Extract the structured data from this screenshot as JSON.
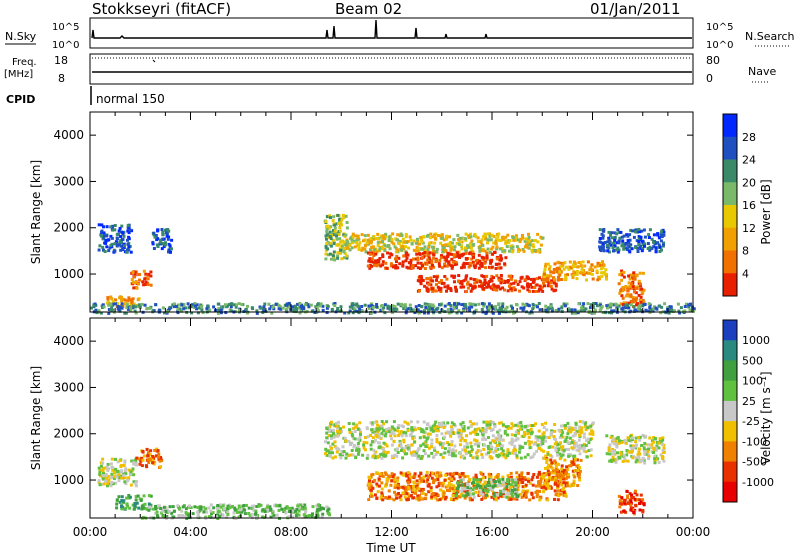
{
  "header": {
    "station": "Stokkseyri (fitACF)",
    "beam": "Beam 02",
    "date": "01/Jan/2011"
  },
  "top_panels": {
    "nsky_label": "N.Sky",
    "nsky_ticks": [
      "10^5",
      "10^0"
    ],
    "nsearch_label": "N.Search",
    "nsearch_ticks": [
      "10^5",
      "10^0"
    ],
    "freq_label": "Freq.",
    "freq_unit": "[MHz]",
    "freq_ticks": [
      "18",
      "8"
    ],
    "nave_label": "Nave",
    "nave_ticks": [
      "80",
      "0"
    ],
    "cpid_label": "CPID",
    "cpid_value": "normal 150"
  },
  "chart_data": [
    {
      "type": "heatmap",
      "panel": "power",
      "ylabel": "Slant Range [km]",
      "xlabel": "",
      "yticks": [
        "1000",
        "2000",
        "3000",
        "4000"
      ],
      "ylim": [
        180,
        4500
      ],
      "xlim": [
        0,
        24
      ],
      "colorbar": {
        "label": "Power [dB]",
        "ticks": [
          "4",
          "8",
          "12",
          "16",
          "20",
          "24",
          "28"
        ],
        "colors": [
          "#0028ff",
          "#2050c0",
          "#3a8a6a",
          "#7ab86a",
          "#e8c800",
          "#f0a000",
          "#f07000",
          "#e82000"
        ]
      },
      "echo_regions": [
        {
          "t0": 0.3,
          "t1": 1.6,
          "r0": 1500,
          "r1": 2100,
          "level": 1
        },
        {
          "t0": 1.6,
          "t1": 2.4,
          "r0": 700,
          "r1": 1100,
          "level": 6
        },
        {
          "t0": 0.6,
          "t1": 1.9,
          "r0": 300,
          "r1": 550,
          "level": 5
        },
        {
          "t0": 2.4,
          "t1": 3.2,
          "r0": 1500,
          "r1": 2000,
          "level": 1
        },
        {
          "t0": 9.3,
          "t1": 10.2,
          "r0": 1300,
          "r1": 2300,
          "level": 3
        },
        {
          "t0": 10.0,
          "t1": 18.0,
          "r0": 1500,
          "r1": 1900,
          "level": 4
        },
        {
          "t0": 11.0,
          "t1": 16.5,
          "r0": 1150,
          "r1": 1500,
          "level": 7
        },
        {
          "t0": 13.0,
          "t1": 18.5,
          "r0": 650,
          "r1": 1000,
          "level": 7
        },
        {
          "t0": 18.0,
          "t1": 20.5,
          "r0": 900,
          "r1": 1300,
          "level": 5
        },
        {
          "t0": 20.2,
          "t1": 22.8,
          "r0": 1500,
          "r1": 2000,
          "level": 1
        },
        {
          "t0": 21.0,
          "t1": 22.0,
          "r0": 300,
          "r1": 1100,
          "level": 6
        },
        {
          "t0": 0.0,
          "t1": 24.0,
          "r0": 180,
          "r1": 400,
          "level": 2
        }
      ]
    },
    {
      "type": "heatmap",
      "panel": "velocity",
      "ylabel": "Slant Range [km]",
      "xlabel": "Time UT",
      "xticks": [
        "00:00",
        "04:00",
        "08:00",
        "12:00",
        "16:00",
        "20:00",
        "00:00"
      ],
      "yticks": [
        "1000",
        "2000",
        "3000",
        "4000"
      ],
      "ylim": [
        180,
        4500
      ],
      "xlim": [
        0,
        24
      ],
      "colorbar": {
        "label": "Velocity [m s⁻¹]",
        "ticks": [
          "1000",
          "500",
          "100",
          "25",
          "-25",
          "-100",
          "-500",
          "-1000"
        ],
        "colors": [
          "#1a40c0",
          "#2a8a80",
          "#40a040",
          "#60c040",
          "#c8c8c8",
          "#f0c000",
          "#f08000",
          "#e83000",
          "#e80000"
        ]
      },
      "echo_regions": [
        {
          "t0": 0.3,
          "t1": 1.8,
          "r0": 900,
          "r1": 1500,
          "level": 4
        },
        {
          "t0": 1.8,
          "t1": 2.8,
          "r0": 1300,
          "r1": 1700,
          "level": 6
        },
        {
          "t0": 1.0,
          "t1": 2.4,
          "r0": 400,
          "r1": 700,
          "level": 2
        },
        {
          "t0": 2.0,
          "t1": 9.5,
          "r0": 200,
          "r1": 500,
          "level": 3
        },
        {
          "t0": 9.3,
          "t1": 20.0,
          "r0": 1500,
          "r1": 2300,
          "level": 4
        },
        {
          "t0": 11.0,
          "t1": 19.0,
          "r0": 600,
          "r1": 1200,
          "level": 6
        },
        {
          "t0": 14.5,
          "t1": 17.0,
          "r0": 650,
          "r1": 1050,
          "level": 3
        },
        {
          "t0": 18.0,
          "t1": 19.5,
          "r0": 900,
          "r1": 1500,
          "level": 6
        },
        {
          "t0": 20.5,
          "t1": 22.8,
          "r0": 1400,
          "r1": 2000,
          "level": 4
        },
        {
          "t0": 21.0,
          "t1": 22.0,
          "r0": 300,
          "r1": 800,
          "level": 7
        }
      ]
    }
  ]
}
